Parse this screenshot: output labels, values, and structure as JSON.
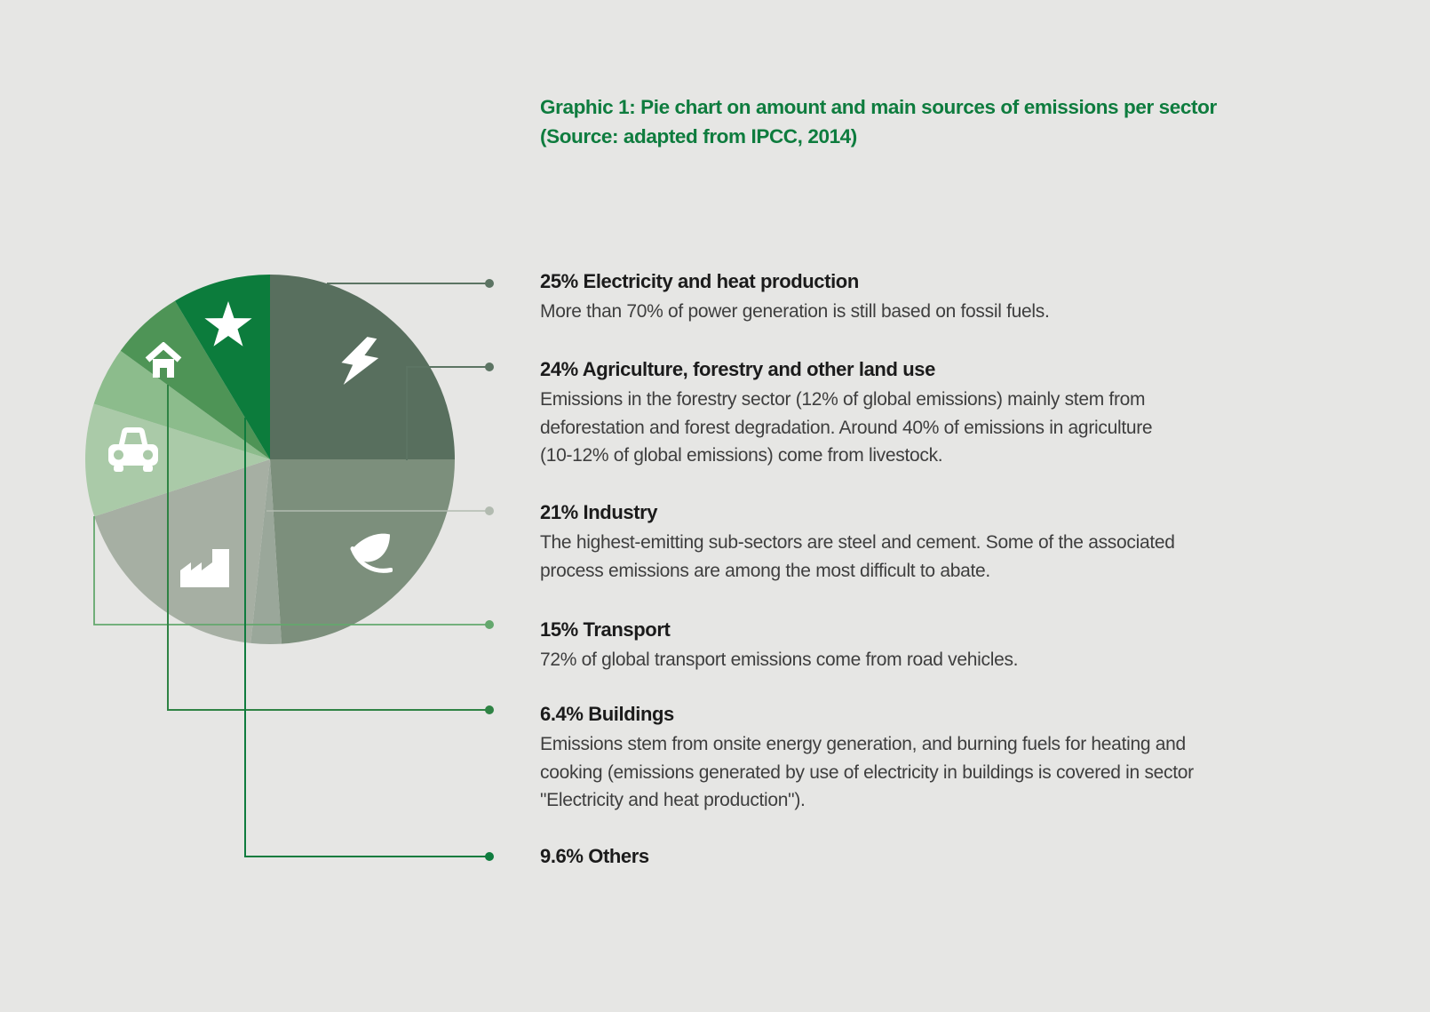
{
  "title": {
    "line1": "Graphic 1: Pie chart on amount and main sources of emissions per sector",
    "line2": "(Source: adapted from IPCC, 2014)",
    "color": "#0e7c3e"
  },
  "background_color": "#e6e6e4",
  "chart_data": {
    "type": "pie",
    "title": "Graphic 1: Pie chart on amount and main sources of emissions per sector (Source: adapted from IPCC, 2014)",
    "legend_position": "right-callouts",
    "slices": [
      {
        "label": "Electricity and heat production",
        "display_pct": "25%",
        "value": 25,
        "color": "#586f5e",
        "line_color": "#5c7463",
        "icon": "lightning-icon",
        "description_lines": [
          "More than 70% of power generation is still based on fossil fuels."
        ]
      },
      {
        "label": "Agriculture, forestry and other land use",
        "display_pct": "24%",
        "value": 24,
        "color": "#7c8f7c",
        "line_color": "#5c7463",
        "icon": "leaf-icon",
        "description_lines": [
          "Emissions in the forestry sector (12% of global emissions) mainly stem from",
          "deforestation and forest degradation. Around 40% of emissions in agriculture",
          "(10-12% of global emissions) come from livestock."
        ]
      },
      {
        "label": "Industry",
        "display_pct": "21%",
        "value": 21,
        "color": "#a6afa3",
        "line_color": "#b2bbb0",
        "icon": "factory-icon",
        "description_lines": [
          "The highest-emitting sub-sectors are steel and cement. Some of the associated",
          "process emissions are among the most difficult to abate."
        ]
      },
      {
        "label": "Transport",
        "display_pct": "15%",
        "value": 15,
        "color": "#aacaa8",
        "line_color": "#64a86d",
        "icon": "car-icon",
        "description_lines": [
          "72% of global transport emissions come from road vehicles."
        ]
      },
      {
        "label": "Buildings",
        "display_pct": "6.4%",
        "value": 6.4,
        "color": "#4e9456",
        "line_color": "#2f8344",
        "icon": "house-icon",
        "description_lines": [
          "Emissions stem from onsite energy generation, and burning fuels for heating and",
          "cooking (emissions generated by use of electricity in buildings is covered in sector",
          "\"Electricity and heat production\")."
        ]
      },
      {
        "label": "Others",
        "display_pct": "9.6%",
        "value": 9.6,
        "color": "#0c7c3c",
        "line_color": "#0f7c3e",
        "icon": "star-icon",
        "description_lines": []
      }
    ]
  }
}
